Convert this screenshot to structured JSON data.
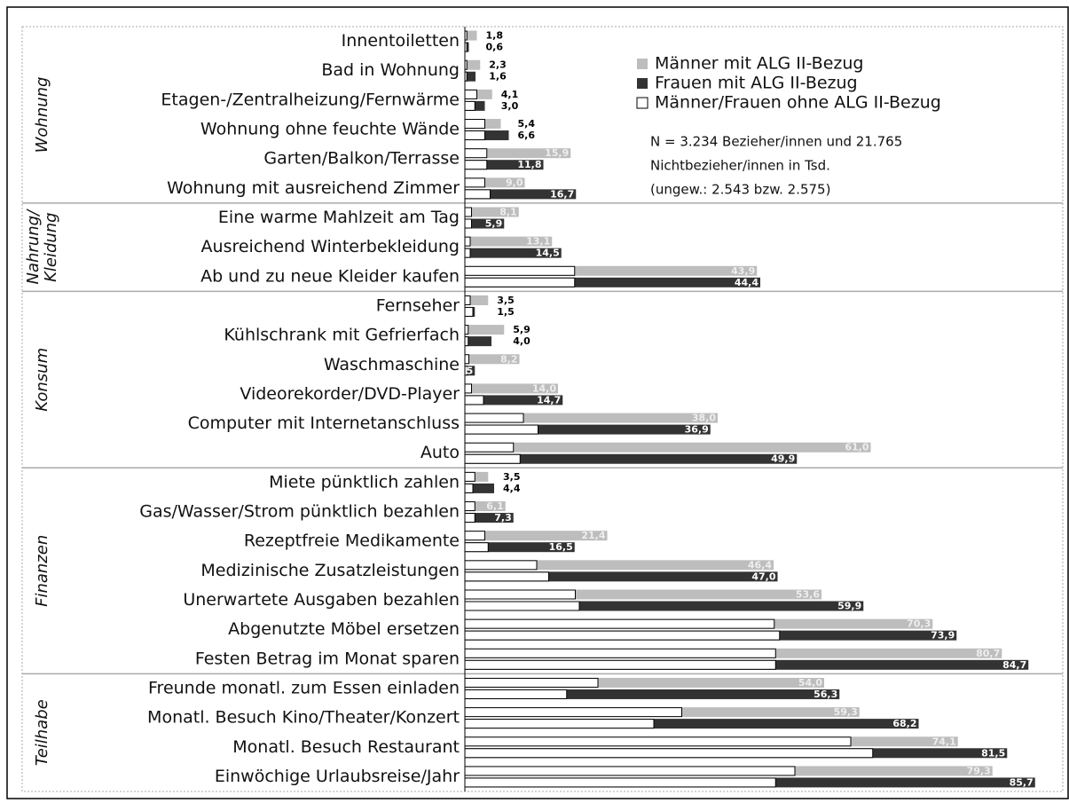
{
  "chart_data": {
    "type": "bar",
    "orientation": "horizontal",
    "xlim": [
      0,
      90
    ],
    "groups": [
      {
        "label": [
          "Wohnung"
        ],
        "categories": [
          "Innentoiletten",
          "Bad in Wohnung",
          "Etagen-/Zentralheizung/Fernwärme",
          "Wohnung ohne feuchte Wände",
          "Garten/Balkon/Terrasse",
          "Wohnung mit ausreichend Zimmer"
        ]
      },
      {
        "label": [
          "Nahrung/",
          "Kleidung"
        ],
        "categories": [
          "Eine warme Mahlzeit am Tag",
          "Ausreichend Winterbekleidung",
          "Ab und zu neue Kleider kaufen"
        ]
      },
      {
        "label": [
          "Konsum"
        ],
        "categories": [
          "Fernseher",
          "Kühlschrank mit Gefrierfach",
          "Waschmaschine",
          "Videorekorder/DVD-Player",
          "Computer mit Internetanschluss",
          "Auto"
        ]
      },
      {
        "label": [
          "Finanzen"
        ],
        "categories": [
          "Miete pünktlich zahlen",
          "Gas/Wasser/Strom pünktlich bezahlen",
          "Rezeptfreie Medikamente",
          "Medizinische Zusatzleistungen",
          "Unerwartete Ausgaben bezahlen",
          "Abgenutzte Möbel ersetzen",
          "Festen Betrag im Monat sparen"
        ]
      },
      {
        "label": [
          "Teilhabe"
        ],
        "categories": [
          "Freunde monatl. zum Essen einladen",
          "Monatl. Besuch Kino/Theater/Konzert",
          "Monatl. Besuch Restaurant",
          "Einwöchige Urlaubsreise/Jahr"
        ]
      }
    ],
    "series": [
      {
        "name": "Männer mit ALG II-Bezug",
        "color": "#bdbdbd",
        "values": [
          1.8,
          2.3,
          4.1,
          5.4,
          15.9,
          9.0,
          8.1,
          13.1,
          43.9,
          3.5,
          5.9,
          8.2,
          14.0,
          38.0,
          61.0,
          3.5,
          6.1,
          21.4,
          46.4,
          53.6,
          70.3,
          80.7,
          54.0,
          59.3,
          74.1,
          79.3
        ],
        "value_labels": [
          "1,8",
          "2,3",
          "4,1",
          "5,4",
          "15,9",
          "9,0",
          "8,1",
          "13,1",
          "43,9",
          "3,5",
          "5,9",
          "8,2",
          "14,0",
          "38,0",
          "61,0",
          "3,5",
          "6,1",
          "21,4",
          "46,4",
          "53,6",
          "70,3",
          "80,7",
          "54,0",
          "59,3",
          "74,1",
          "79,3"
        ]
      },
      {
        "name": "Frauen mit ALG II-Bezug",
        "color": "#333333",
        "values": [
          0.6,
          1.6,
          3.0,
          6.6,
          11.8,
          16.7,
          5.9,
          14.5,
          44.4,
          1.5,
          4.0,
          1.5,
          14.7,
          36.9,
          49.9,
          4.4,
          7.3,
          16.5,
          47.0,
          59.9,
          73.9,
          84.7,
          56.3,
          68.2,
          81.5,
          85.7
        ],
        "value_labels": [
          "0,6",
          "1,6",
          "3,0",
          "6,6",
          "11,8",
          "16,7",
          "5,9",
          "14,5",
          "44,4",
          "1,5",
          "4,0",
          "1,5",
          "14,7",
          "36,9",
          "49,9",
          "4,4",
          "7,3",
          "16,5",
          "47,0",
          "59,9",
          "73,9",
          "84,7",
          "56,3",
          "68,2",
          "81,5",
          "85,7"
        ]
      },
      {
        "name": "Männer/Frauen ohne ALG II-Bezug",
        "color": "#ffffff",
        "values": [
          [
            0.3,
            0.3
          ],
          [
            0.3,
            0.3
          ],
          [
            1.8,
            1.5
          ],
          [
            3.0,
            3.0
          ],
          [
            3.3,
            3.3
          ],
          [
            3.0,
            3.8
          ],
          [
            1.0,
            1.0
          ],
          [
            0.8,
            0.8
          ],
          [
            16.5,
            16.5
          ],
          [
            0.8,
            1.2
          ],
          [
            0.5,
            0.5
          ],
          [
            0.6,
            0.4
          ],
          [
            1.0,
            2.8
          ],
          [
            8.8,
            11.0
          ],
          [
            7.3,
            8.3
          ],
          [
            1.5,
            1.2
          ],
          [
            1.5,
            1.5
          ],
          [
            3.0,
            3.5
          ],
          [
            10.8,
            12.6
          ],
          [
            16.6,
            17.2
          ],
          [
            46.5,
            47.3
          ],
          [
            46.7,
            46.7
          ],
          [
            20.0,
            15.3
          ],
          [
            32.6,
            28.4
          ],
          [
            58.0,
            61.3
          ],
          [
            49.6,
            46.7
          ]
        ]
      }
    ],
    "note": [
      "N = 3.234 Bezieher/innen und 21.765",
      "Nichtbezieher/innen in Tsd.",
      "(ungew.: 2.543 bzw. 2.575)"
    ]
  }
}
